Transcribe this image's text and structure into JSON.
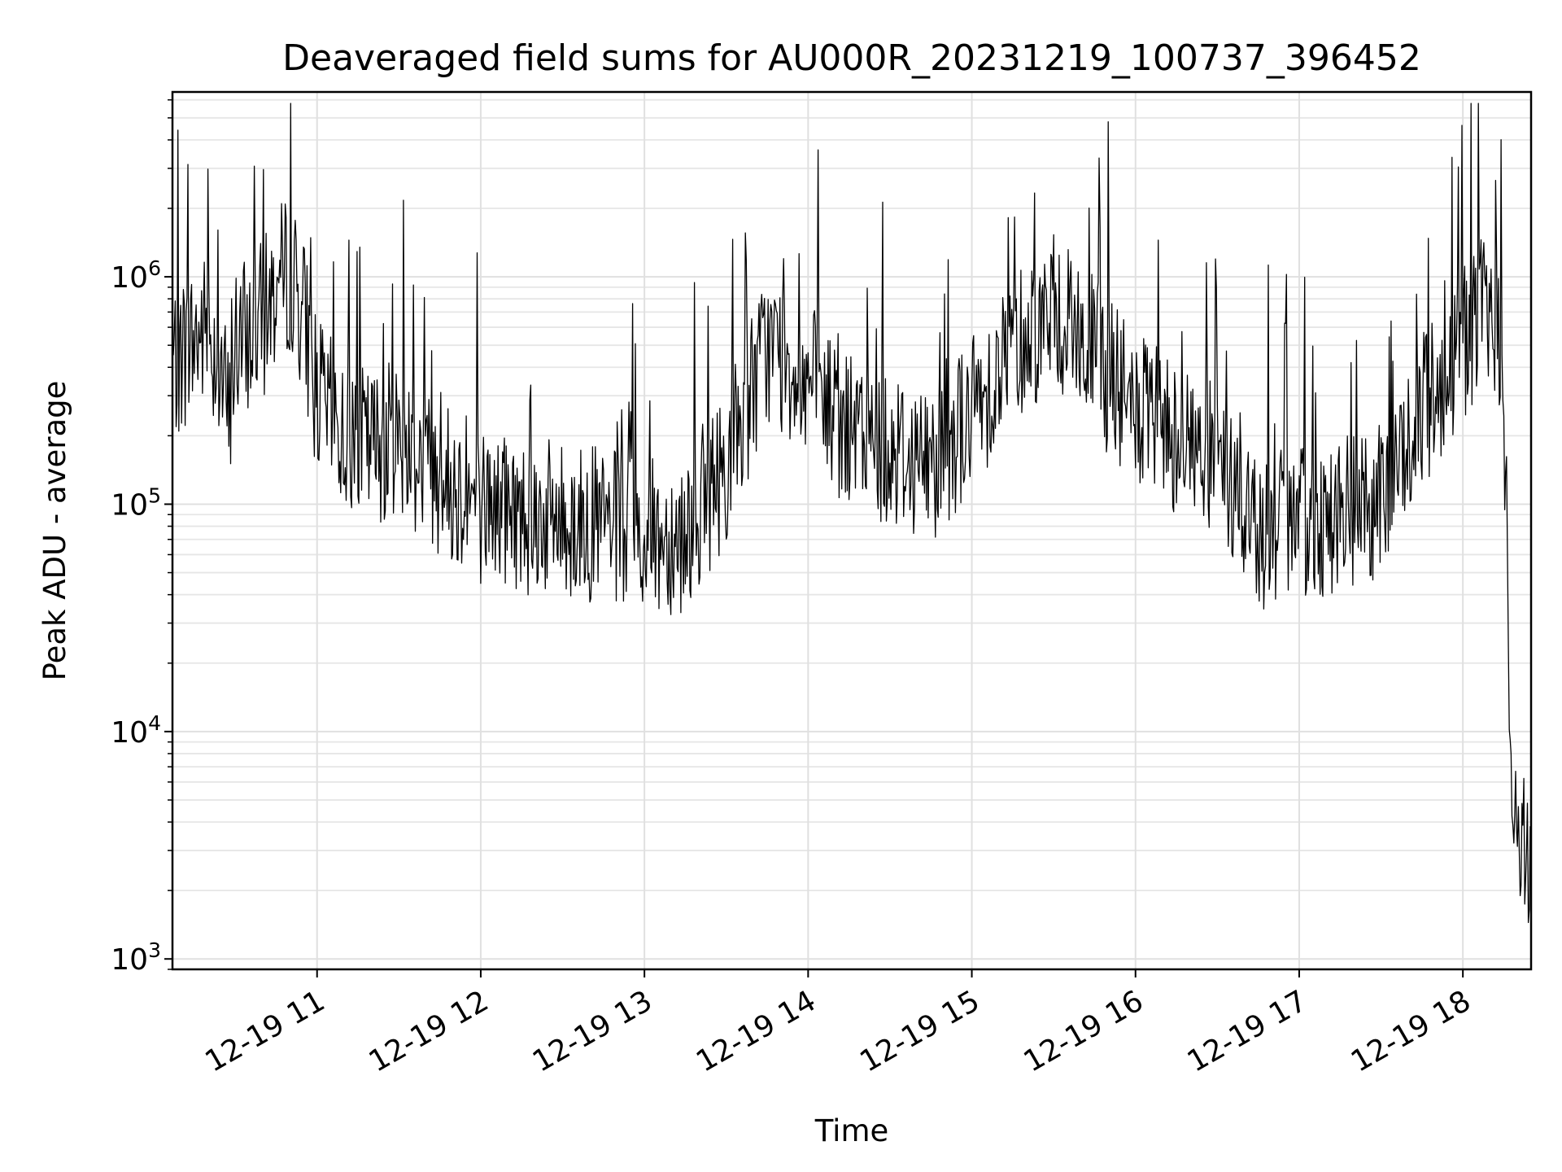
{
  "chart_data": {
    "type": "line",
    "title": "Deaveraged field sums for AU000R_20231219_100737_396452",
    "xlabel": "Time",
    "ylabel": "Peak ADU - average",
    "yscale": "log",
    "grid": true,
    "line_color": "#000000",
    "xlim": [
      "2023-12-19 10:07",
      "2023-12-19 18:25"
    ],
    "ylim": [
      900,
      6500000
    ],
    "x_ticks": [
      {
        "label": "12-19 11",
        "value": "2023-12-19 11:00"
      },
      {
        "label": "12-19 12",
        "value": "2023-12-19 12:00"
      },
      {
        "label": "12-19 13",
        "value": "2023-12-19 13:00"
      },
      {
        "label": "12-19 14",
        "value": "2023-12-19 14:00"
      },
      {
        "label": "12-19 15",
        "value": "2023-12-19 15:00"
      },
      {
        "label": "12-19 16",
        "value": "2023-12-19 16:00"
      },
      {
        "label": "12-19 17",
        "value": "2023-12-19 17:00"
      },
      {
        "label": "12-19 18",
        "value": "2023-12-19 18:00"
      }
    ],
    "y_ticks": [
      {
        "base": "10",
        "exp": "3",
        "value": 1000
      },
      {
        "base": "10",
        "exp": "4",
        "value": 10000
      },
      {
        "base": "10",
        "exp": "5",
        "value": 100000
      },
      {
        "base": "10",
        "exp": "6",
        "value": 1000000
      }
    ],
    "series": [
      {
        "points": [
          [
            "2023-12-19 10:07",
            420000
          ],
          [
            "2023-12-19 10:15",
            520000
          ],
          [
            "2023-12-19 10:20",
            600000
          ],
          [
            "2023-12-19 10:25",
            380000
          ],
          [
            "2023-12-19 10:28",
            220000
          ],
          [
            "2023-12-19 10:30",
            500000
          ],
          [
            "2023-12-19 10:35",
            550000
          ],
          [
            "2023-12-19 10:40",
            650000
          ],
          [
            "2023-12-19 10:45",
            900000
          ],
          [
            "2023-12-19 10:50",
            1050000
          ],
          [
            "2023-12-19 10:55",
            700000
          ],
          [
            "2023-12-19 11:00",
            300000
          ],
          [
            "2023-12-19 11:10",
            200000
          ],
          [
            "2023-12-19 11:20",
            180000
          ],
          [
            "2023-12-19 11:30",
            200000
          ],
          [
            "2023-12-19 11:40",
            150000
          ],
          [
            "2023-12-19 11:50",
            120000
          ],
          [
            "2023-12-19 12:00",
            100000
          ],
          [
            "2023-12-19 12:15",
            90000
          ],
          [
            "2023-12-19 12:30",
            85000
          ],
          [
            "2023-12-19 12:45",
            80000
          ],
          [
            "2023-12-19 13:00",
            70000
          ],
          [
            "2023-12-19 13:15",
            75000
          ],
          [
            "2023-12-19 13:30",
            150000
          ],
          [
            "2023-12-19 13:45",
            500000
          ],
          [
            "2023-12-19 14:00",
            350000
          ],
          [
            "2023-12-19 14:15",
            200000
          ],
          [
            "2023-12-19 14:30",
            180000
          ],
          [
            "2023-12-19 14:45",
            150000
          ],
          [
            "2023-12-19 15:00",
            250000
          ],
          [
            "2023-12-19 15:15",
            500000
          ],
          [
            "2023-12-19 15:30",
            700000
          ],
          [
            "2023-12-19 15:45",
            450000
          ],
          [
            "2023-12-19 16:00",
            250000
          ],
          [
            "2023-12-19 16:15",
            200000
          ],
          [
            "2023-12-19 16:30",
            150000
          ],
          [
            "2023-12-19 16:45",
            75000
          ],
          [
            "2023-12-19 17:00",
            80000
          ],
          [
            "2023-12-19 17:15",
            90000
          ],
          [
            "2023-12-19 17:30",
            100000
          ],
          [
            "2023-12-19 17:45",
            250000
          ],
          [
            "2023-12-19 18:00",
            500000
          ],
          [
            "2023-12-19 18:05",
            650000
          ],
          [
            "2023-12-19 18:10",
            750000
          ],
          [
            "2023-12-19 18:12",
            700000
          ],
          [
            "2023-12-19 18:15",
            250000
          ],
          [
            "2023-12-19 18:16",
            80000
          ],
          [
            "2023-12-19 18:17",
            20000
          ],
          [
            "2023-12-19 18:18",
            5000
          ],
          [
            "2023-12-19 18:20",
            3500
          ],
          [
            "2023-12-19 18:22",
            3000
          ],
          [
            "2023-12-19 18:25",
            2500
          ]
        ]
      }
    ]
  }
}
